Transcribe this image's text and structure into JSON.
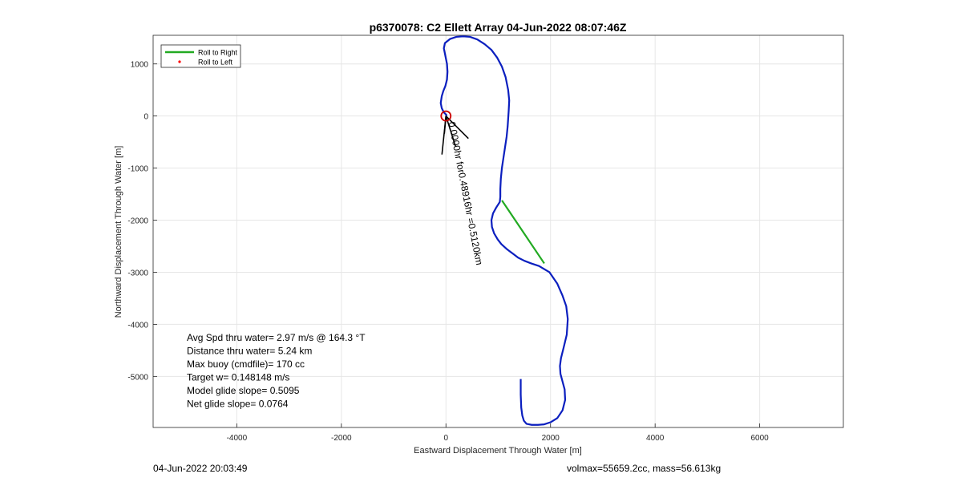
{
  "chart_data": {
    "type": "line",
    "title": "p6370078: C2 Ellett Array 04-Jun-2022 08:07:46Z",
    "xlabel": "Eastward Displacement Through Water [m]",
    "ylabel": "Northward Displacement Through Water [m]",
    "xlim": [
      -5600,
      7600
    ],
    "ylim": [
      -5980,
      1550
    ],
    "xticks": [
      -4000,
      -2000,
      0,
      2000,
      4000,
      6000
    ],
    "yticks": [
      -5000,
      -4000,
      -3000,
      -2000,
      -1000,
      0,
      1000
    ],
    "grid": true,
    "legend_position": "top-left",
    "legend": [
      {
        "label": "Roll to Right",
        "color": "#22aa22",
        "style": "line"
      },
      {
        "label": "Roll to Left",
        "color": "#ff0000",
        "style": "dot"
      }
    ],
    "series": [
      {
        "color": "#0b1fbf",
        "x": [
          1430,
          1430,
          1440,
          1460,
          1490,
          1540,
          1640,
          1760,
          1880,
          2000,
          2130,
          2230,
          2280,
          2270,
          2230,
          2190,
          2180,
          2200,
          2250,
          2310,
          2330,
          2300,
          2230,
          2130,
          1980,
          1780,
          1630,
          1500,
          1380,
          1290,
          1170,
          1060,
          990,
          920,
          880,
          870,
          900,
          960,
          1030,
          1040,
          1040,
          1050,
          1070,
          1100,
          1130,
          1160,
          1180,
          1190,
          1200,
          1210,
          1190,
          1140,
          1070,
          980,
          870,
          740,
          600,
          460,
          330,
          200,
          80,
          -20,
          -40,
          -10,
          20,
          30,
          20,
          -10,
          -50,
          -80,
          -100,
          -80,
          -40,
          10,
          0
        ],
        "y": [
          -5050,
          -5350,
          -5600,
          -5750,
          -5850,
          -5910,
          -5930,
          -5930,
          -5920,
          -5880,
          -5800,
          -5650,
          -5450,
          -5250,
          -5100,
          -4950,
          -4800,
          -4650,
          -4450,
          -4200,
          -3900,
          -3650,
          -3450,
          -3220,
          -3000,
          -2880,
          -2830,
          -2780,
          -2720,
          -2650,
          -2560,
          -2460,
          -2370,
          -2250,
          -2130,
          -2000,
          -1870,
          -1760,
          -1650,
          -1550,
          -1400,
          -1200,
          -1000,
          -800,
          -600,
          -400,
          -200,
          -50,
          100,
          300,
          500,
          750,
          950,
          1120,
          1270,
          1380,
          1470,
          1520,
          1530,
          1520,
          1480,
          1400,
          1300,
          1150,
          1000,
          850,
          700,
          580,
          480,
          380,
          250,
          150,
          70,
          20,
          0
        ]
      }
    ],
    "roll_right_segment": {
      "x": [
        1070,
        1880
      ],
      "y": [
        -1620,
        -2830
      ]
    },
    "start_marker": {
      "x": 0,
      "y": 0,
      "color": "#cc0000"
    },
    "annotation": {
      "text": "0.0000hr for0.48916hr =0.5120km",
      "x": 50,
      "y": 0,
      "rotation_deg": 79
    },
    "stats_box": {
      "lines": [
        "Avg Spd thru water=  2.97 m/s @ 164.3 °T",
        "Distance thru water=  5.24 km",
        "Max buoy (cmdfile)= 170 cc",
        "Target w= 0.148148 m/s",
        "Model glide slope= 0.5095",
        "Net glide slope= 0.0764"
      ]
    }
  },
  "footer": {
    "left": "04-Jun-2022 20:03:49",
    "right": "volmax=55659.2cc, mass=56.613kg"
  }
}
